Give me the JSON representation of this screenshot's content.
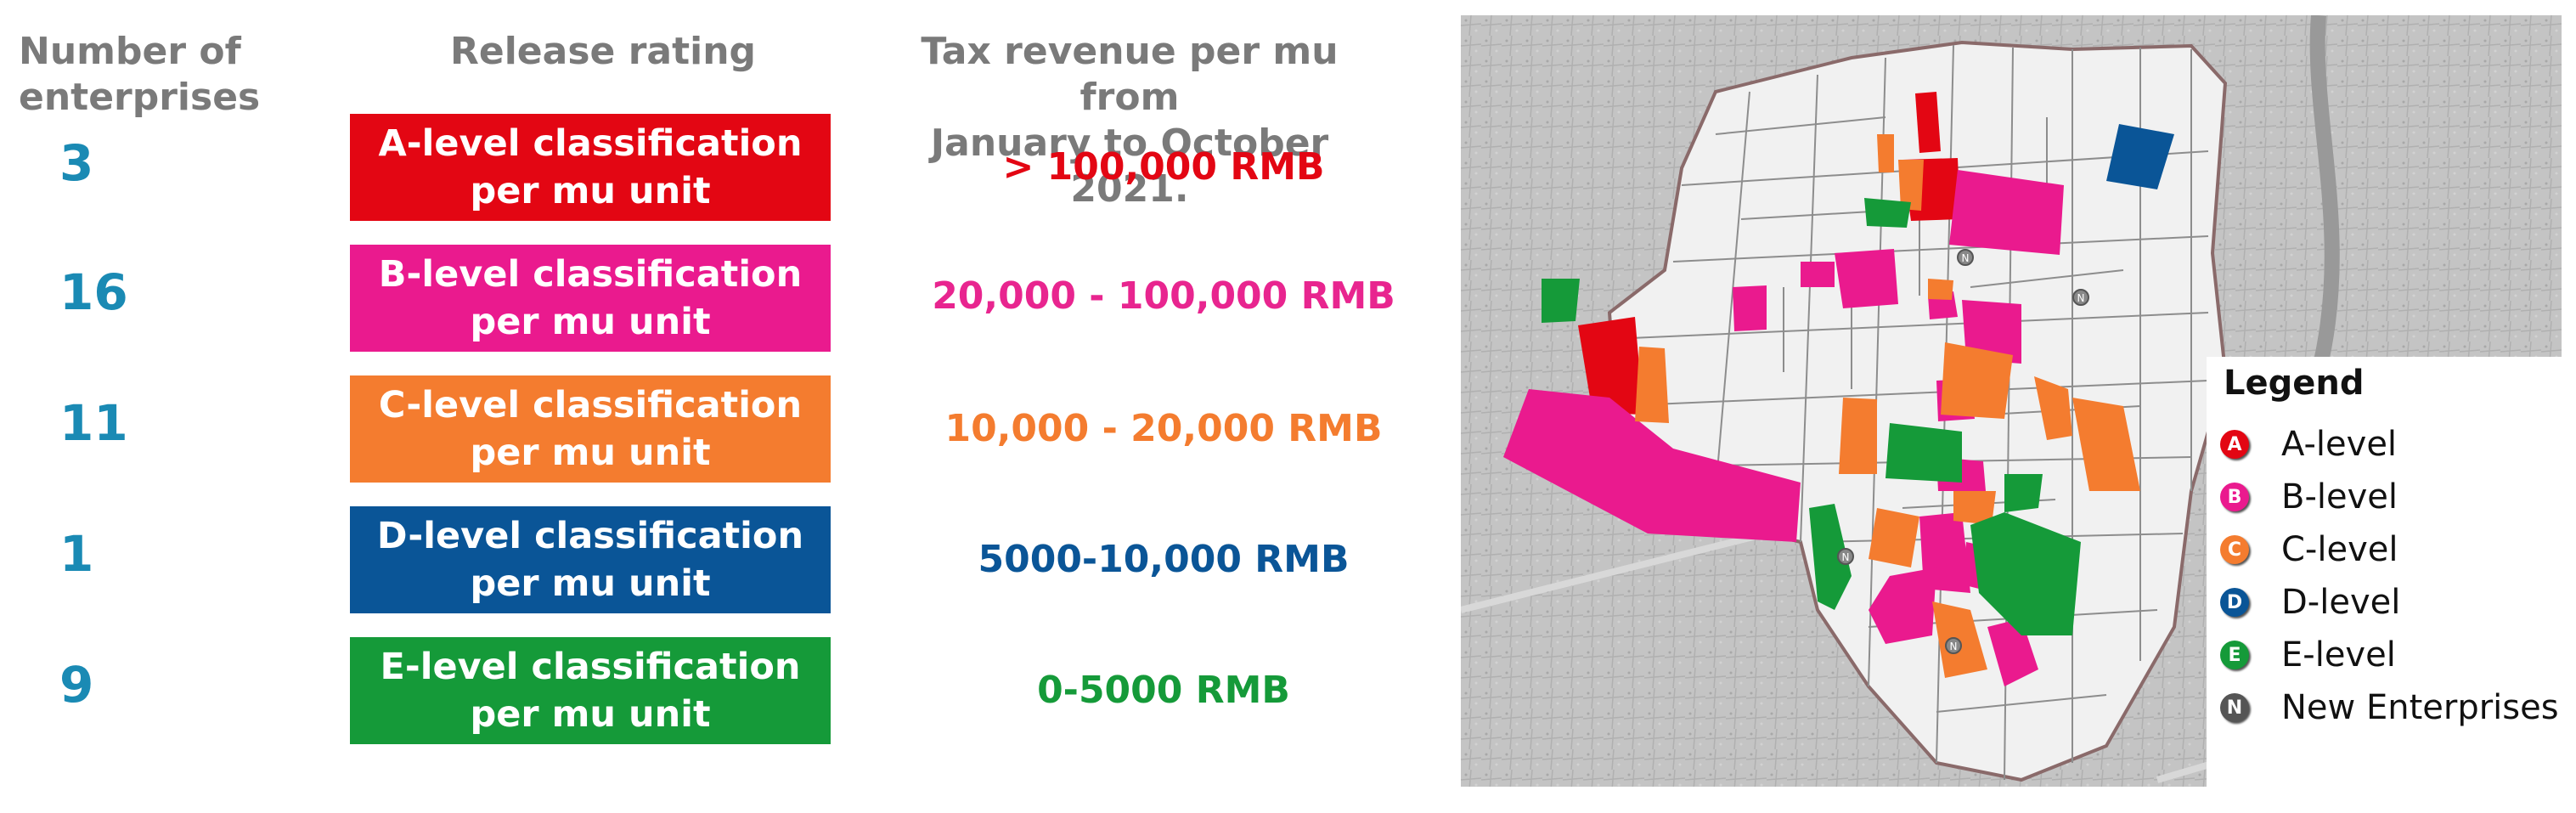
{
  "headers": {
    "count": "Number of\nenterprises",
    "rating": "Release rating",
    "tax": "Tax revenue per mu from\nJanuary to October 2021."
  },
  "levels": [
    {
      "count": "3",
      "rating": "A-level classification\nper mu unit",
      "tax": ">  100,000 RMB",
      "color": "#e30613",
      "tax_color": "#e30613"
    },
    {
      "count": "16",
      "rating": "B-level classification\nper mu unit",
      "tax": "20,000 - 100,000 RMB",
      "color": "#ea1a8e",
      "tax_color": "#e8258f"
    },
    {
      "count": "11",
      "rating": "C-level classification\nper mu unit",
      "tax": "10,000 - 20,000 RMB",
      "color": "#f47c2f",
      "tax_color": "#f47c2f"
    },
    {
      "count": "1",
      "rating": "D-level classification\nper mu unit",
      "tax": "5000-10,000 RMB",
      "color": "#0a5597",
      "tax_color": "#0a5597"
    },
    {
      "count": "9",
      "rating": "E-level classification\nper mu unit",
      "tax": "0-5000 RMB",
      "color": "#159a39",
      "tax_color": "#159a39"
    }
  ],
  "legend": {
    "title": "Legend",
    "items": [
      {
        "marker": "A",
        "label": "A-level",
        "color": "#e30613"
      },
      {
        "marker": "B",
        "label": "B-level",
        "color": "#ea1a8e"
      },
      {
        "marker": "C",
        "label": "C-level",
        "color": "#f47c2f"
      },
      {
        "marker": "D",
        "label": "D-level",
        "color": "#0a5597"
      },
      {
        "marker": "E",
        "label": "E-level",
        "color": "#159a39"
      },
      {
        "marker": "N",
        "label": "New Enterprises",
        "color": "#555555"
      }
    ]
  },
  "map_markers": [
    "N",
    "N",
    "N",
    "N"
  ]
}
